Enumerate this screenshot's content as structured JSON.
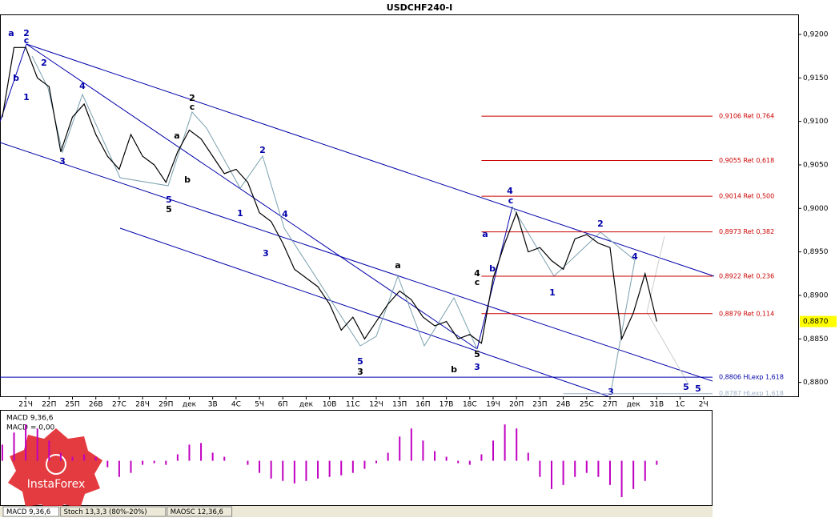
{
  "chart_data": {
    "type": "line",
    "title": "USDCHF240-I",
    "price_color": "#000000",
    "x": [
      -1,
      -0.5,
      0,
      0.5,
      1,
      1.5,
      2,
      2.5,
      3,
      3.5,
      4,
      4.5,
      5,
      5.5,
      6,
      6.5,
      7,
      7.5,
      8,
      8.5,
      9,
      9.5,
      10,
      10.5,
      11,
      11.5,
      12,
      12.5,
      13,
      13.5,
      14,
      14.5,
      15,
      15.5,
      16,
      16.5,
      17,
      17.5,
      18,
      18.5,
      19,
      19.5,
      20,
      20.5,
      21,
      21.5,
      22,
      22.5,
      23,
      23.5,
      24,
      24.5,
      25,
      25.5,
      26,
      26.5,
      27
    ],
    "values": [
      0.9105,
      0.9185,
      0.9185,
      0.915,
      0.914,
      0.9065,
      0.9105,
      0.912,
      0.9085,
      0.906,
      0.9045,
      0.9085,
      0.906,
      0.905,
      0.903,
      0.9065,
      0.909,
      0.908,
      0.906,
      0.904,
      0.9045,
      0.903,
      0.8995,
      0.8985,
      0.896,
      0.893,
      0.892,
      0.891,
      0.889,
      0.886,
      0.8875,
      0.885,
      0.887,
      0.889,
      0.8905,
      0.8895,
      0.8875,
      0.8865,
      0.887,
      0.885,
      0.8855,
      0.8845,
      0.892,
      0.896,
      0.8995,
      0.895,
      0.8955,
      0.894,
      0.893,
      0.8965,
      0.897,
      0.896,
      0.8955,
      0.885,
      0.888,
      0.8925,
      0.887
    ],
    "xlim": [
      -1.1,
      33.05
    ],
    "xticks": [
      {
        "value": 0,
        "label": "21Ч"
      },
      {
        "value": 1,
        "label": "22П"
      },
      {
        "value": 2,
        "label": "25П"
      },
      {
        "value": 3,
        "label": "26В"
      },
      {
        "value": 4,
        "label": "27С"
      },
      {
        "value": 5,
        "label": "28Ч"
      },
      {
        "value": 6,
        "label": "29П"
      },
      {
        "value": 7,
        "label": "дек"
      },
      {
        "value": 8,
        "label": "3В"
      },
      {
        "value": 9,
        "label": "4С"
      },
      {
        "value": 10,
        "label": "5Ч"
      },
      {
        "value": 11,
        "label": "6П"
      },
      {
        "value": 12,
        "label": "дек"
      },
      {
        "value": 13,
        "label": "10В"
      },
      {
        "value": 14,
        "label": "11С"
      },
      {
        "value": 15,
        "label": "12Ч"
      },
      {
        "value": 16,
        "label": "13П"
      },
      {
        "value": 17,
        "label": "16П"
      },
      {
        "value": 18,
        "label": "17В"
      },
      {
        "value": 19,
        "label": "18С"
      },
      {
        "value": 20,
        "label": "19Ч"
      },
      {
        "value": 21,
        "label": "20П"
      },
      {
        "value": 22,
        "label": "23П"
      },
      {
        "value": 23,
        "label": "24В"
      },
      {
        "value": 24,
        "label": "25С"
      },
      {
        "value": 25,
        "label": "27П"
      },
      {
        "value": 26,
        "label": "дек"
      },
      {
        "value": 27,
        "label": "31В"
      },
      {
        "value": 28,
        "label": "1С"
      },
      {
        "value": 29,
        "label": "2Ч"
      }
    ],
    "ylim": [
      0.8784,
      0.9223
    ],
    "yticks": [
      {
        "value": 0.92,
        "label": "0,9200"
      },
      {
        "value": 0.915,
        "label": "0,9150"
      },
      {
        "value": 0.91,
        "label": "0,9100"
      },
      {
        "value": 0.905,
        "label": "0,9050"
      },
      {
        "value": 0.9,
        "label": "0,9000"
      },
      {
        "value": 0.895,
        "label": "0,8950"
      },
      {
        "value": 0.89,
        "label": "0,8900"
      },
      {
        "value": 0.885,
        "label": "0,8850"
      },
      {
        "value": 0.88,
        "label": "0,8800"
      }
    ],
    "current_price": {
      "value": 0.887,
      "label": "0,8870"
    },
    "levels": [
      {
        "value": 0.9106,
        "label": "0,9106 Ret 0,764",
        "color": "#cc0000",
        "from": 19.5
      },
      {
        "value": 0.9055,
        "label": "0,9055 Ret 0,618",
        "color": "#cc0000",
        "from": 19.5
      },
      {
        "value": 0.9014,
        "label": "0,9014 Ret 0,500",
        "color": "#cc0000",
        "from": 19.5
      },
      {
        "value": 0.8973,
        "label": "0,8973 Ret 0,382",
        "color": "#cc0000",
        "from": 19.5
      },
      {
        "value": 0.8922,
        "label": "0,8922 Ret 0,236",
        "color": "#cc0000",
        "from": 19.5
      },
      {
        "value": 0.8879,
        "label": "0,8879 Ret 0,114",
        "color": "#cc0000",
        "from": 19.5
      },
      {
        "value": 0.8806,
        "label": "0,8806 HLexp 1,618",
        "color": "#0000aa",
        "from": -1.1
      },
      {
        "value": 0.8787,
        "label": "0,8787 HLexp 1,618",
        "color": "#a0b0c8",
        "from": 23
      }
    ],
    "macd": {
      "title": "MACD 9,36,6",
      "readout": "MACD = 0,00",
      "color": "#c000c0",
      "ylim": [
        -55,
        63
      ],
      "values": [
        20,
        35,
        45,
        40,
        25,
        10,
        5,
        8,
        5,
        -8,
        -20,
        -15,
        -5,
        -3,
        -5,
        8,
        20,
        22,
        10,
        5,
        0,
        -5,
        -15,
        -22,
        -25,
        -28,
        -25,
        -22,
        -20,
        -18,
        -15,
        -10,
        -3,
        10,
        30,
        40,
        25,
        12,
        5,
        -3,
        -5,
        8,
        25,
        45,
        40,
        10,
        -20,
        -35,
        -30,
        -20,
        -15,
        -20,
        -30,
        -45,
        -35,
        -25,
        -5
      ]
    },
    "tabs": [
      "MACD 9,36,6",
      "Stoch 13,3,3 (80%-20%)",
      "MAOSC 12,36,6"
    ],
    "watermark": "InstaForex",
    "wave_labels": [
      {
        "text": "a",
        "color": "#0000aa"
      },
      {
        "text": "2",
        "color": "#0000aa"
      },
      {
        "text": "c",
        "color": "#0000aa"
      },
      {
        "text": "b",
        "color": "#0000aa"
      },
      {
        "text": "1",
        "color": "#0000aa"
      },
      {
        "text": "2",
        "color": "#0000aa"
      },
      {
        "text": "3",
        "color": "#0000aa"
      },
      {
        "text": "4",
        "color": "#0000aa"
      },
      {
        "text": "2",
        "color": "#000000"
      },
      {
        "text": "c",
        "color": "#000000"
      },
      {
        "text": "a",
        "color": "#000000"
      },
      {
        "text": "b",
        "color": "#000000"
      },
      {
        "text": "5",
        "color": "#0000aa"
      },
      {
        "text": "5",
        "color": "#000000"
      },
      {
        "text": "2",
        "color": "#0000aa"
      },
      {
        "text": "1",
        "color": "#0000aa"
      },
      {
        "text": "3",
        "color": "#0000aa"
      },
      {
        "text": "4",
        "color": "#0000aa"
      },
      {
        "text": "a",
        "color": "#000000"
      },
      {
        "text": "5",
        "color": "#0000aa"
      },
      {
        "text": "3",
        "color": "#000000"
      },
      {
        "text": "4",
        "color": "#000000"
      },
      {
        "text": "c",
        "color": "#000000"
      },
      {
        "text": "5",
        "color": "#000000"
      },
      {
        "text": "3",
        "color": "#0000aa"
      },
      {
        "text": "b",
        "color": "#000000"
      },
      {
        "text": "4",
        "color": "#0000aa"
      },
      {
        "text": "c",
        "color": "#0000aa"
      },
      {
        "text": "a",
        "color": "#0000aa"
      },
      {
        "text": "b",
        "color": "#0000aa"
      },
      {
        "text": "2",
        "color": "#0000aa"
      },
      {
        "text": "1",
        "color": "#0000aa"
      },
      {
        "text": "4",
        "color": "#0000aa"
      },
      {
        "text": "3",
        "color": "#0000aa"
      },
      {
        "text": "5",
        "color": "#0000aa"
      },
      {
        "text": "5",
        "color": "#0000aa"
      }
    ]
  }
}
